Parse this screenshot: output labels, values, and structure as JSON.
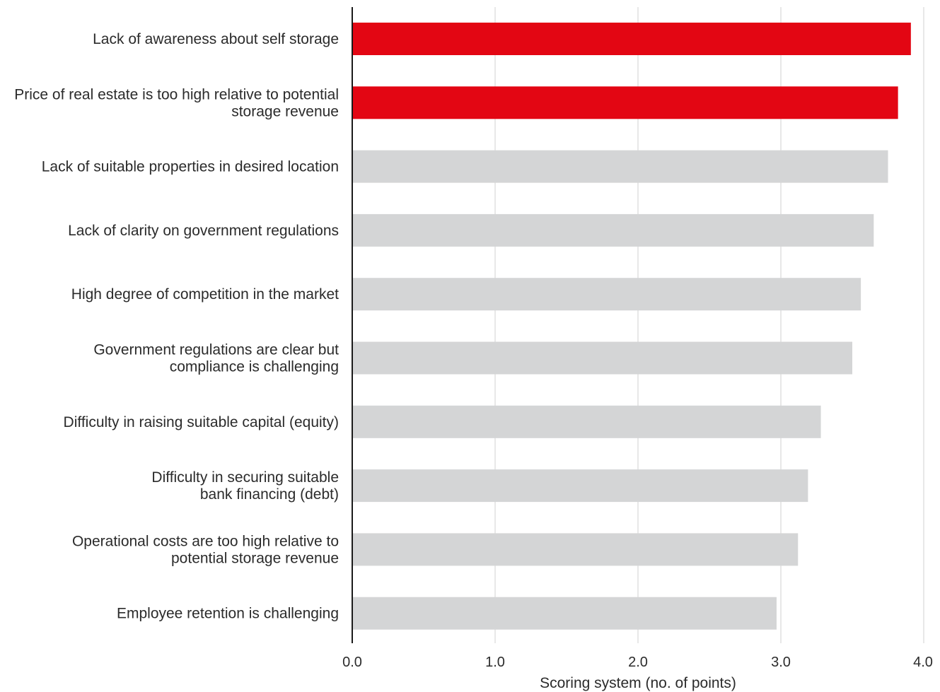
{
  "chart_data": {
    "type": "bar",
    "orientation": "horizontal",
    "categories": [
      [
        "Lack of awareness about self storage"
      ],
      [
        "Price of real estate is too high relative to potential",
        "storage revenue"
      ],
      [
        "Lack of suitable properties in desired location"
      ],
      [
        "Lack of clarity on government regulations"
      ],
      [
        "High degree of competition in the market"
      ],
      [
        "Government regulations are clear but",
        "compliance is challenging"
      ],
      [
        "Difficulty in raising suitable capital (equity)"
      ],
      [
        "Difficulty in securing suitable",
        "bank financing (debt)"
      ],
      [
        "Operational costs are too high relative to",
        "potential storage revenue"
      ],
      [
        "Employee retention is challenging"
      ]
    ],
    "values": [
      3.91,
      3.82,
      3.75,
      3.65,
      3.56,
      3.5,
      3.28,
      3.19,
      3.12,
      2.97
    ],
    "highlighted": [
      true,
      true,
      false,
      false,
      false,
      false,
      false,
      false,
      false,
      false
    ],
    "xlim": [
      0,
      4
    ],
    "xticks": [
      "0.0",
      "1.0",
      "2.0",
      "3.0",
      "4.0"
    ],
    "xlabel": "Scoring system (no. of points)",
    "title": "",
    "ylabel": "",
    "grid": "vertical",
    "colors": {
      "highlight": "#e30613",
      "default": "#d4d5d6",
      "grid": "#d9d9d9",
      "axis": "#1a1a1a"
    }
  }
}
